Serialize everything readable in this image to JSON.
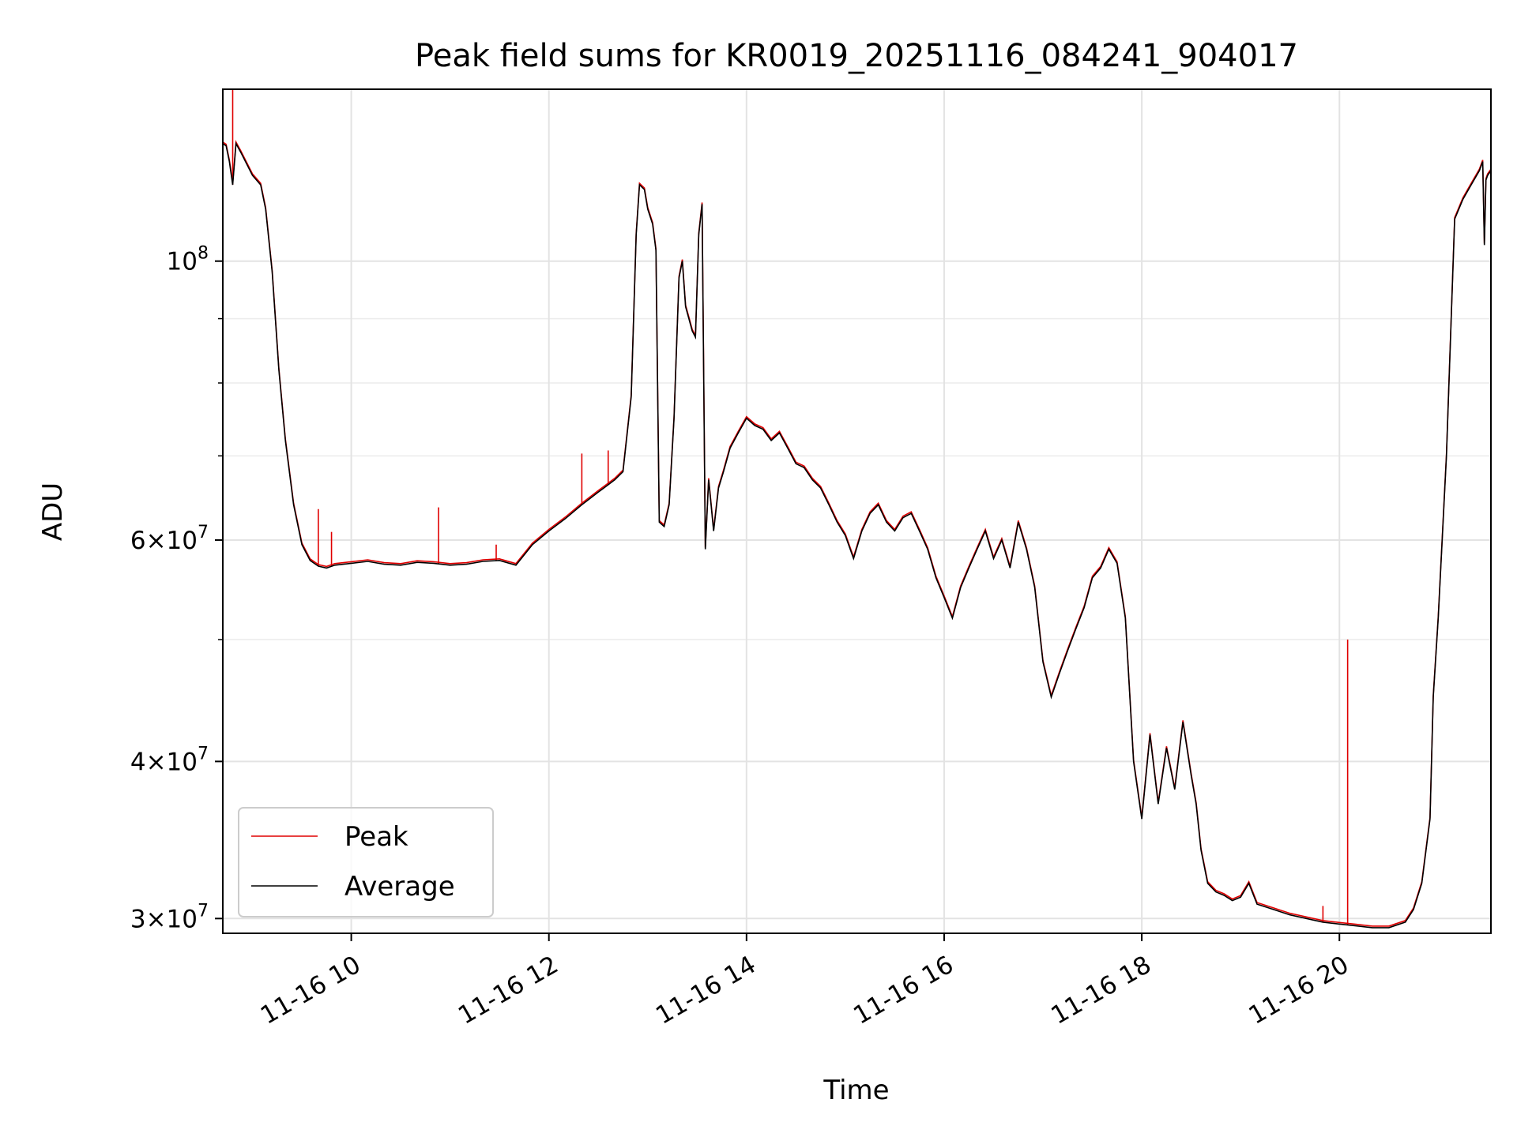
{
  "chart_data": {
    "type": "line",
    "title": "Peak field sums for KR0019_20251116_084241_904017",
    "xlabel": "Time",
    "ylabel": "ADU",
    "yscale": "log",
    "xlim": [
      "11-16 08:42",
      "11-16 21:32"
    ],
    "ylim": [
      29200000,
      137000000
    ],
    "grid": true,
    "legend_position": "lower-left",
    "x_ticks": [
      {
        "value": "11-16 10:00",
        "label": "11-16 10"
      },
      {
        "value": "11-16 12:00",
        "label": "11-16 12"
      },
      {
        "value": "11-16 14:00",
        "label": "11-16 14"
      },
      {
        "value": "11-16 16:00",
        "label": "11-16 16"
      },
      {
        "value": "11-16 18:00",
        "label": "11-16 18"
      },
      {
        "value": "11-16 20:00",
        "label": "11-16 20"
      }
    ],
    "y_ticks": [
      {
        "value": 30000000,
        "base": "3",
        "exp": "7"
      },
      {
        "value": 40000000,
        "base": "4",
        "exp": "7"
      },
      {
        "value": 60000000,
        "base": "6",
        "exp": "7"
      },
      {
        "value": 100000000,
        "base": "",
        "exp": "8"
      }
    ],
    "series": [
      {
        "name": "Peak",
        "color": "#e00000",
        "spikes": [
          [
            "11-16 08:48",
            137000000
          ],
          [
            "11-16 09:40",
            63500000
          ],
          [
            "11-16 09:48",
            60900000
          ],
          [
            "11-16 10:53",
            63700000
          ],
          [
            "11-16 11:28",
            59500000
          ],
          [
            "11-16 12:20",
            70300000
          ],
          [
            "11-16 12:36",
            70700000
          ],
          [
            "11-16 19:50",
            30700000
          ],
          [
            "11-16 20:05",
            50000000
          ]
        ]
      },
      {
        "name": "Average",
        "color": "#000000",
        "points": [
          [
            "11-16 08:42",
            124000000
          ],
          [
            "11-16 08:44",
            123500000
          ],
          [
            "11-16 08:46",
            120000000
          ],
          [
            "11-16 08:48",
            115000000
          ],
          [
            "11-16 08:50",
            124000000
          ],
          [
            "11-16 08:53",
            122000000
          ],
          [
            "11-16 09:00",
            117000000
          ],
          [
            "11-16 09:05",
            115000000
          ],
          [
            "11-16 09:08",
            110000000
          ],
          [
            "11-16 09:12",
            98000000
          ],
          [
            "11-16 09:16",
            82000000
          ],
          [
            "11-16 09:20",
            72000000
          ],
          [
            "11-16 09:25",
            64000000
          ],
          [
            "11-16 09:30",
            59500000
          ],
          [
            "11-16 09:35",
            57800000
          ],
          [
            "11-16 09:40",
            57200000
          ],
          [
            "11-16 09:45",
            57000000
          ],
          [
            "11-16 09:50",
            57300000
          ],
          [
            "11-16 10:00",
            57500000
          ],
          [
            "11-16 10:10",
            57700000
          ],
          [
            "11-16 10:20",
            57400000
          ],
          [
            "11-16 10:30",
            57300000
          ],
          [
            "11-16 10:40",
            57600000
          ],
          [
            "11-16 10:50",
            57500000
          ],
          [
            "11-16 11:00",
            57300000
          ],
          [
            "11-16 11:10",
            57400000
          ],
          [
            "11-16 11:20",
            57700000
          ],
          [
            "11-16 11:30",
            57800000
          ],
          [
            "11-16 11:40",
            57300000
          ],
          [
            "11-16 11:50",
            59500000
          ],
          [
            "11-16 12:00",
            61000000
          ],
          [
            "11-16 12:10",
            62400000
          ],
          [
            "11-16 12:20",
            64000000
          ],
          [
            "11-16 12:30",
            65500000
          ],
          [
            "11-16 12:40",
            67000000
          ],
          [
            "11-16 12:45",
            68000000
          ],
          [
            "11-16 12:50",
            78000000
          ],
          [
            "11-16 12:53",
            105000000
          ],
          [
            "11-16 12:55",
            115000000
          ],
          [
            "11-16 12:58",
            114000000
          ],
          [
            "11-16 13:00",
            110000000
          ],
          [
            "11-16 13:03",
            107000000
          ],
          [
            "11-16 13:05",
            102000000
          ],
          [
            "11-16 13:07",
            62000000
          ],
          [
            "11-16 13:10",
            61500000
          ],
          [
            "11-16 13:13",
            64000000
          ],
          [
            "11-16 13:16",
            75000000
          ],
          [
            "11-16 13:19",
            97000000
          ],
          [
            "11-16 13:21",
            100000000
          ],
          [
            "11-16 13:23",
            92000000
          ],
          [
            "11-16 13:25",
            90000000
          ],
          [
            "11-16 13:27",
            88000000
          ],
          [
            "11-16 13:29",
            87000000
          ],
          [
            "11-16 13:31",
            105000000
          ],
          [
            "11-16 13:33",
            111000000
          ],
          [
            "11-16 13:35",
            59000000
          ],
          [
            "11-16 13:37",
            67000000
          ],
          [
            "11-16 13:40",
            61000000
          ],
          [
            "11-16 13:43",
            66000000
          ],
          [
            "11-16 13:46",
            68000000
          ],
          [
            "11-16 13:50",
            71000000
          ],
          [
            "11-16 13:55",
            73000000
          ],
          [
            "11-16 14:00",
            75000000
          ],
          [
            "11-16 14:05",
            74000000
          ],
          [
            "11-16 14:10",
            73500000
          ],
          [
            "11-16 14:15",
            72000000
          ],
          [
            "11-16 14:20",
            73000000
          ],
          [
            "11-16 14:25",
            71000000
          ],
          [
            "11-16 14:30",
            69000000
          ],
          [
            "11-16 14:35",
            68500000
          ],
          [
            "11-16 14:40",
            67000000
          ],
          [
            "11-16 14:45",
            66000000
          ],
          [
            "11-16 14:50",
            64000000
          ],
          [
            "11-16 14:55",
            62000000
          ],
          [
            "11-16 15:00",
            60500000
          ],
          [
            "11-16 15:05",
            58000000
          ],
          [
            "11-16 15:10",
            61000000
          ],
          [
            "11-16 15:15",
            63000000
          ],
          [
            "11-16 15:20",
            64000000
          ],
          [
            "11-16 15:25",
            62000000
          ],
          [
            "11-16 15:30",
            61000000
          ],
          [
            "11-16 15:35",
            62500000
          ],
          [
            "11-16 15:40",
            63000000
          ],
          [
            "11-16 15:45",
            61000000
          ],
          [
            "11-16 15:50",
            59000000
          ],
          [
            "11-16 15:55",
            56000000
          ],
          [
            "11-16 16:00",
            54000000
          ],
          [
            "11-16 16:05",
            52000000
          ],
          [
            "11-16 16:10",
            55000000
          ],
          [
            "11-16 16:15",
            57000000
          ],
          [
            "11-16 16:20",
            59000000
          ],
          [
            "11-16 16:25",
            61000000
          ],
          [
            "11-16 16:30",
            58000000
          ],
          [
            "11-16 16:35",
            60000000
          ],
          [
            "11-16 16:40",
            57000000
          ],
          [
            "11-16 16:45",
            62000000
          ],
          [
            "11-16 16:50",
            59000000
          ],
          [
            "11-16 16:55",
            55000000
          ],
          [
            "11-16 17:00",
            48000000
          ],
          [
            "11-16 17:05",
            45000000
          ],
          [
            "11-16 17:10",
            47000000
          ],
          [
            "11-16 17:15",
            49000000
          ],
          [
            "11-16 17:20",
            51000000
          ],
          [
            "11-16 17:25",
            53000000
          ],
          [
            "11-16 17:30",
            56000000
          ],
          [
            "11-16 17:35",
            57000000
          ],
          [
            "11-16 17:40",
            59000000
          ],
          [
            "11-16 17:45",
            57500000
          ],
          [
            "11-16 17:50",
            52000000
          ],
          [
            "11-16 17:55",
            40000000
          ],
          [
            "11-16 18:00",
            36000000
          ],
          [
            "11-16 18:05",
            42000000
          ],
          [
            "11-16 18:10",
            37000000
          ],
          [
            "11-16 18:15",
            41000000
          ],
          [
            "11-16 18:20",
            38000000
          ],
          [
            "11-16 18:25",
            43000000
          ],
          [
            "11-16 18:30",
            39000000
          ],
          [
            "11-16 18:33",
            37000000
          ],
          [
            "11-16 18:36",
            34000000
          ],
          [
            "11-16 18:40",
            32000000
          ],
          [
            "11-16 18:45",
            31500000
          ],
          [
            "11-16 18:50",
            31300000
          ],
          [
            "11-16 18:55",
            31000000
          ],
          [
            "11-16 19:00",
            31200000
          ],
          [
            "11-16 19:05",
            32000000
          ],
          [
            "11-16 19:10",
            30800000
          ],
          [
            "11-16 19:20",
            30500000
          ],
          [
            "11-16 19:30",
            30200000
          ],
          [
            "11-16 19:40",
            30000000
          ],
          [
            "11-16 19:50",
            29800000
          ],
          [
            "11-16 20:00",
            29700000
          ],
          [
            "11-16 20:10",
            29600000
          ],
          [
            "11-16 20:20",
            29500000
          ],
          [
            "11-16 20:30",
            29500000
          ],
          [
            "11-16 20:40",
            29800000
          ],
          [
            "11-16 20:45",
            30500000
          ],
          [
            "11-16 20:50",
            32000000
          ],
          [
            "11-16 20:55",
            36000000
          ],
          [
            "11-16 20:57",
            45000000
          ],
          [
            "11-16 21:00",
            52000000
          ],
          [
            "11-16 21:05",
            70000000
          ],
          [
            "11-16 21:10",
            108000000
          ],
          [
            "11-16 21:15",
            112000000
          ],
          [
            "11-16 21:20",
            115000000
          ],
          [
            "11-16 21:25",
            118000000
          ],
          [
            "11-16 21:27",
            120000000
          ],
          [
            "11-16 21:28",
            103000000
          ],
          [
            "11-16 21:29",
            116000000
          ],
          [
            "11-16 21:30",
            117000000
          ],
          [
            "11-16 21:32",
            118000000
          ]
        ]
      }
    ]
  }
}
